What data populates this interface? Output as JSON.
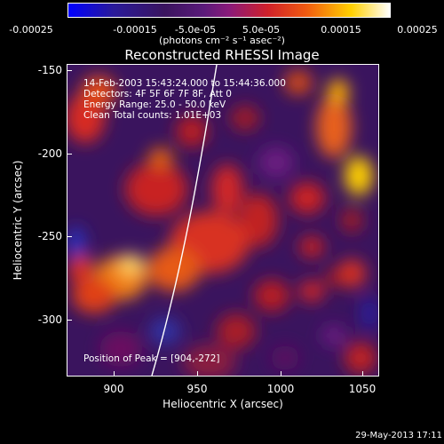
{
  "colorbar": {
    "ticks": [
      "-0.00025",
      "-0.00015",
      "-5.0e-05",
      "5.0e-05",
      "0.00015",
      "0.00025"
    ],
    "unit_label": "(photons cm⁻² s⁻¹ asec⁻²)"
  },
  "plot": {
    "title": "Reconstructed RHESSI Image",
    "info_lines": [
      "14-Feb-2003 15:43:24.000 to 15:44:36.000",
      "Detectors: 4F 5F 6F 7F 8F, Att 0",
      "Energy Range: 25.0 - 50.0 keV",
      "Clean     Total counts: 1.01E+03"
    ],
    "peak_label": "Position of Peak = [904,-272]",
    "x_ticks": [
      "900",
      "950",
      "1000",
      "1050"
    ],
    "y_ticks": [
      "-150",
      "-200",
      "-250",
      "-300"
    ],
    "xlabel": "Heliocentric X (arcsec)",
    "ylabel": "Heliocentric Y (arcsec)"
  },
  "footer": {
    "date": "29-May-2013 17:11"
  },
  "colors": {
    "background": "#000000",
    "low": "#0000ff",
    "mid": "#3a145e",
    "high": "#ffd000",
    "peak": "#ffffff",
    "limb": "#ffffff"
  }
}
